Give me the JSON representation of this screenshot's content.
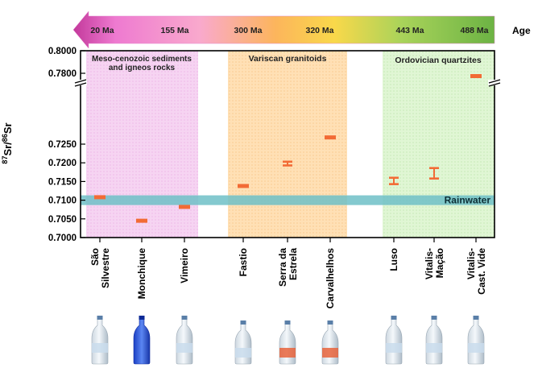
{
  "chart_data": {
    "type": "scatter",
    "ylabel": "87Sr/86Sr",
    "ylabel_base": "Sr",
    "ylabel_sup1": "87",
    "ylabel_sup2": "86",
    "y_ticks": [
      "0.8000",
      "0.7800",
      "0.7250",
      "0.7200",
      "0.7150",
      "0.7100",
      "0.7050",
      "0.7000"
    ],
    "y_axis_break": true,
    "age_arrow": {
      "title": "Age",
      "labels": [
        "20 Ma",
        "155 Ma",
        "300 Ma",
        "320 Ma",
        "443 Ma",
        "488 Ma"
      ]
    },
    "groups": [
      {
        "label": "Meso-cenozoic sediments and igneos rocks",
        "color": "#f3c8ef"
      },
      {
        "label": "Variscan granitoids",
        "color": "#ffd9a8"
      },
      {
        "label": "Ordovician quartzites",
        "color": "#d4f2c4"
      }
    ],
    "rainwater": {
      "label": "Rainwater",
      "range": [
        0.7087,
        0.7113
      ],
      "color": "#6fbfc7"
    },
    "bottle_icon": "water-bottle-icon",
    "series": [
      {
        "categories": [
          "São Silvestre",
          "Monchique",
          "Vimeiro",
          "Fastio",
          "Serra da Estrela",
          "Carvalhelhos",
          "Luso",
          "Vitalis-Mação",
          "Vitalis-Cast. Vide"
        ],
        "values": [
          0.7108,
          0.7045,
          0.7082,
          0.7138,
          0.7198,
          0.7268,
          0.7151,
          0.717,
          0.7775
        ],
        "err_low": [
          0.7106,
          0.7043,
          0.708,
          0.7136,
          0.7193,
          0.7264,
          0.7143,
          0.7158,
          0.7773
        ],
        "err_high": [
          0.711,
          0.7047,
          0.7084,
          0.714,
          0.7203,
          0.7272,
          0.716,
          0.7186,
          0.7777
        ],
        "color": "#f26b35"
      }
    ]
  }
}
